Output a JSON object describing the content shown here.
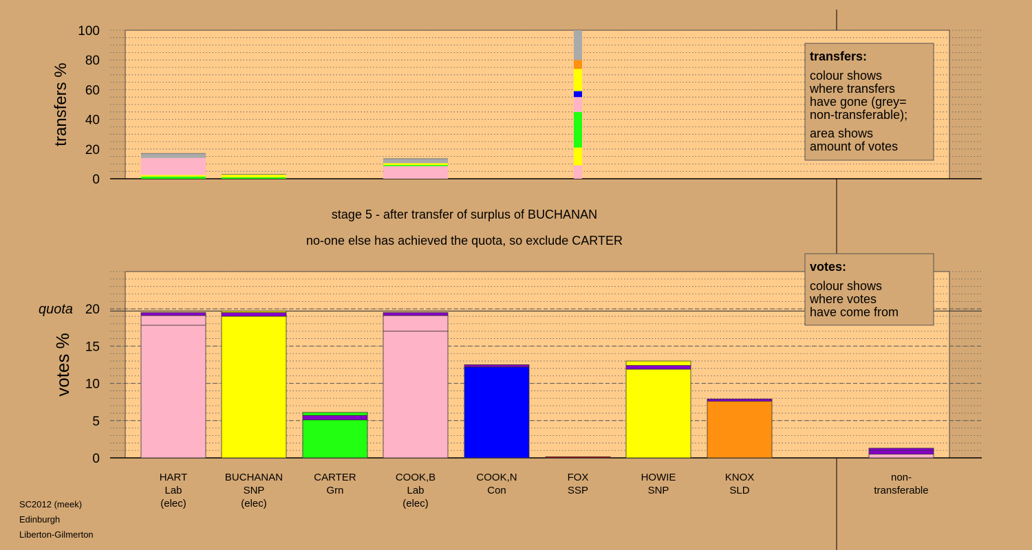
{
  "stage_line": "stage 5 - after transfer of surplus of BUCHANAN",
  "note_line": "no-one else has achieved the quota, so exclude CARTER",
  "footer": [
    "SC2012 (meek)",
    "Edinburgh",
    "Liberton-Gilmerton"
  ],
  "transfers_box": {
    "title": "transfers:",
    "lines": [
      "colour shows",
      "where transfers",
      "have gone (grey=",
      "non-transferable);",
      "area shows",
      "amount of votes"
    ]
  },
  "votes_box": {
    "title": "votes:",
    "lines": [
      "colour shows",
      "where votes",
      "have come from"
    ]
  },
  "colors": {
    "background": "#d4a874",
    "plot": "#ffcc8c",
    "Lab": "#ffb3c6",
    "SNP": "#ffff00",
    "Grn": "#22ff11",
    "Con": "#0000ff",
    "SSP": "#cc0000",
    "SLD": "#ff9010",
    "nontransferable": "#aaaaaa",
    "minor": "#8800cc"
  },
  "chart_data": [
    {
      "type": "bar",
      "ylabel": "transfers %",
      "ylim": [
        0,
        100
      ],
      "yticks": [
        0,
        20,
        40,
        60,
        80,
        100
      ],
      "grid": true,
      "columns": [
        {
          "label": [
            "HART",
            "Lab",
            "(elec)"
          ],
          "segments": [
            {
              "color": "Grn",
              "value": 1.5
            },
            {
              "color": "SNP",
              "value": 1.0
            },
            {
              "color": "Lab",
              "value": 11.5
            },
            {
              "color": "nontransferable",
              "value": 3.0
            }
          ]
        },
        {
          "label": [
            "BUCHANAN",
            "SNP",
            "(elec)"
          ],
          "segments": [
            {
              "color": "Grn",
              "value": 1.0
            },
            {
              "color": "SNP",
              "value": 2.0
            }
          ]
        },
        {
          "label": [
            "CARTER",
            "Grn"
          ],
          "segments": []
        },
        {
          "label": [
            "COOK,B",
            "Lab",
            "(elec)"
          ],
          "segments": [
            {
              "color": "Lab",
              "value": 8.5
            },
            {
              "color": "Grn",
              "value": 0.8
            },
            {
              "color": "SNP",
              "value": 1.2
            },
            {
              "color": "nontransferable",
              "value": 3.0
            }
          ]
        },
        {
          "label": [
            "COOK,N",
            "Con"
          ],
          "segments": []
        },
        {
          "label": [
            "FOX",
            "SSP"
          ],
          "segments": [
            {
              "color": "Lab",
              "value": 9
            },
            {
              "color": "SNP",
              "value": 12
            },
            {
              "color": "Grn",
              "value": 24
            },
            {
              "color": "Lab",
              "value": 10
            },
            {
              "color": "Con",
              "value": 4
            },
            {
              "color": "SNP",
              "value": 15
            },
            {
              "color": "SLD",
              "value": 6
            },
            {
              "color": "nontransferable",
              "value": 20
            }
          ]
        },
        {
          "label": [
            "HOWIE",
            "SNP"
          ],
          "segments": []
        },
        {
          "label": [
            "KNOX",
            "SLD"
          ],
          "segments": []
        }
      ]
    },
    {
      "type": "bar",
      "ylabel": "votes %",
      "ylim": [
        0,
        25
      ],
      "yticks": [
        0,
        5,
        10,
        15,
        20
      ],
      "quota": 19.7,
      "quota_label": "quota",
      "grid": true,
      "columns": [
        {
          "label": [
            "HART",
            "Lab",
            "(elec)"
          ],
          "segments": [
            {
              "color": "Lab",
              "value": 17.8
            },
            {
              "color": "Lab",
              "value": 1.3
            },
            {
              "color": "minor",
              "value": 0.4
            }
          ]
        },
        {
          "label": [
            "BUCHANAN",
            "SNP",
            "(elec)"
          ],
          "segments": [
            {
              "color": "SNP",
              "value": 19.0
            },
            {
              "color": "minor",
              "value": 0.5
            },
            {
              "color": "SNP",
              "value": 0.2
            }
          ]
        },
        {
          "label": [
            "CARTER",
            "Grn"
          ],
          "segments": [
            {
              "color": "Grn",
              "value": 5.1
            },
            {
              "color": "minor",
              "value": 0.6
            },
            {
              "color": "Grn",
              "value": 0.4
            }
          ]
        },
        {
          "label": [
            "COOK,B",
            "Lab",
            "(elec)"
          ],
          "segments": [
            {
              "color": "Lab",
              "value": 17.0
            },
            {
              "color": "Lab",
              "value": 2.1
            },
            {
              "color": "minor",
              "value": 0.4
            }
          ]
        },
        {
          "label": [
            "COOK,N",
            "Con"
          ],
          "segments": [
            {
              "color": "Con",
              "value": 12.2
            },
            {
              "color": "minor",
              "value": 0.3
            }
          ]
        },
        {
          "label": [
            "FOX",
            "SSP"
          ],
          "segments": [
            {
              "color": "SSP",
              "value": 0.15
            }
          ]
        },
        {
          "label": [
            "HOWIE",
            "SNP"
          ],
          "segments": [
            {
              "color": "SNP",
              "value": 11.9
            },
            {
              "color": "minor",
              "value": 0.5
            },
            {
              "color": "SNP",
              "value": 0.6
            }
          ]
        },
        {
          "label": [
            "KNOX",
            "SLD"
          ],
          "segments": [
            {
              "color": "SLD",
              "value": 7.6
            },
            {
              "color": "minor",
              "value": 0.3
            }
          ]
        },
        {
          "label": [
            "non-",
            "transferable"
          ],
          "segments": [
            {
              "color": "Lab",
              "value": 0.5
            },
            {
              "color": "minor",
              "value": 0.5
            },
            {
              "color": "minor",
              "value": 0.3
            }
          ]
        }
      ]
    }
  ]
}
